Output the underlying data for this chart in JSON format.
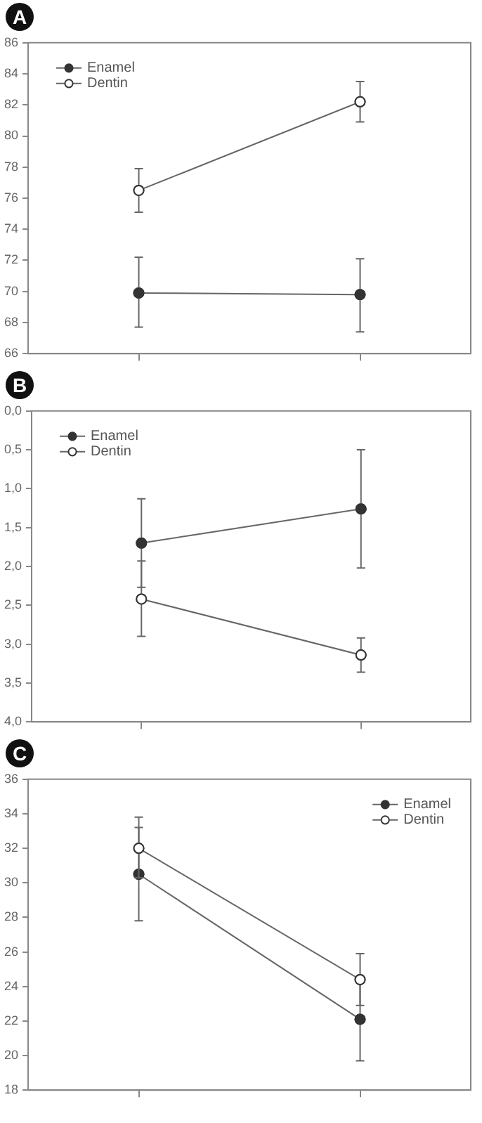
{
  "chart_data": [
    {
      "type": "line",
      "title": "A",
      "categories": [
        null,
        null
      ],
      "ylim": [
        66,
        86
      ],
      "yticks": [
        66,
        68,
        70,
        72,
        74,
        76,
        78,
        80,
        82,
        84,
        86
      ],
      "tick_labels": "y",
      "grid": false,
      "legend": "top left",
      "marker": "circle",
      "line_style": "solid",
      "series": [
        {
          "name": "Enamel",
          "color": "#333333",
          "values": [
            69.9,
            69.8
          ],
          "errors": [
            [
              67.7,
              72.2
            ],
            [
              67.4,
              72.1
            ]
          ]
        },
        {
          "name": "Dentin",
          "color": "#ffffff",
          "values": [
            76.5,
            82.2
          ],
          "errors": [
            [
              75.1,
              77.9
            ],
            [
              80.9,
              83.5
            ]
          ]
        }
      ]
    },
    {
      "type": "line",
      "title": "B",
      "categories": [
        null,
        null
      ],
      "ylim": [
        4,
        0
      ],
      "yticks": [
        {
          "value": 0,
          "label": "0,0"
        },
        {
          "value": 0.5,
          "label": "0,5"
        },
        {
          "value": 1,
          "label": "1,0"
        },
        {
          "value": 1.5,
          "label": "1,5"
        },
        {
          "value": 2,
          "label": "2,0"
        },
        {
          "value": 2.5,
          "label": "2,5"
        },
        {
          "value": 3,
          "label": "3,0"
        },
        {
          "value": 3.5,
          "label": "3,5"
        },
        {
          "value": 4,
          "label": "4,0"
        }
      ],
      "tick_labels": "y",
      "grid": false,
      "legend": "top left",
      "marker": "circle",
      "line_style": "solid",
      "series": [
        {
          "name": "Enamel",
          "color": "#333333",
          "values": [
            1.7,
            1.26
          ],
          "errors": [
            [
              1.13,
              2.27
            ],
            [
              0.5,
              2.02
            ]
          ]
        },
        {
          "name": "Dentin",
          "color": "#ffffff",
          "values": [
            2.42,
            3.14
          ],
          "errors": [
            [
              1.93,
              2.9
            ],
            [
              2.92,
              3.36
            ]
          ]
        }
      ]
    },
    {
      "type": "line",
      "title": "C",
      "categories": [
        null,
        null
      ],
      "ylim": [
        18,
        36
      ],
      "yticks": [
        18,
        20,
        22,
        24,
        26,
        28,
        30,
        32,
        34,
        36
      ],
      "tick_labels": "y",
      "grid": false,
      "legend": "top right",
      "marker": "circle",
      "line_style": "solid",
      "series": [
        {
          "name": "Enamel",
          "color": "#333333",
          "values": [
            30.5,
            22.1
          ],
          "errors": [
            [
              27.8,
              33.2
            ],
            [
              19.7,
              24.5
            ]
          ]
        },
        {
          "name": "Dentin",
          "color": "#ffffff",
          "values": [
            32.0,
            24.4
          ],
          "errors": [
            [
              30.3,
              33.8
            ],
            [
              22.9,
              25.9
            ]
          ]
        }
      ]
    }
  ]
}
